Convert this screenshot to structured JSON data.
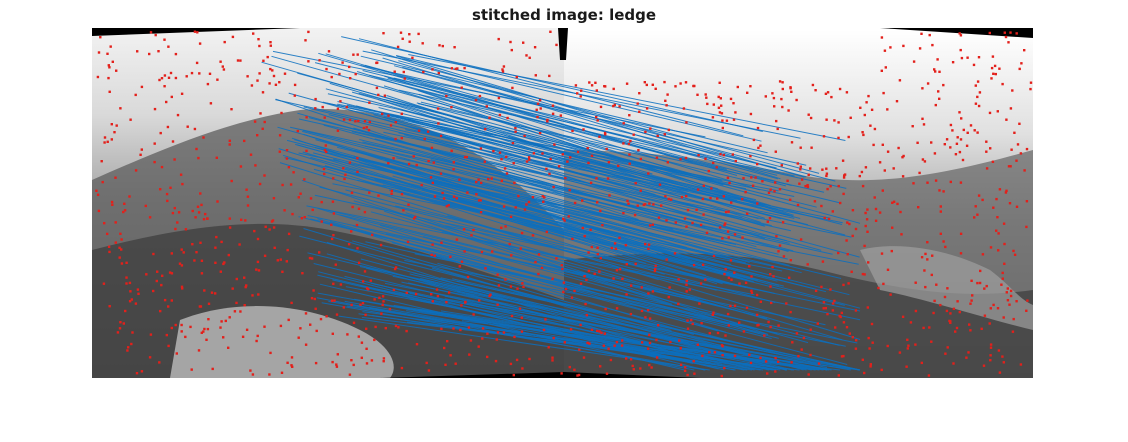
{
  "figure": {
    "title": "stitched image: ledge"
  },
  "colors": {
    "feature_point": "#e3201b",
    "match_line": "#0b6fbf",
    "background": "#ffffff"
  }
}
